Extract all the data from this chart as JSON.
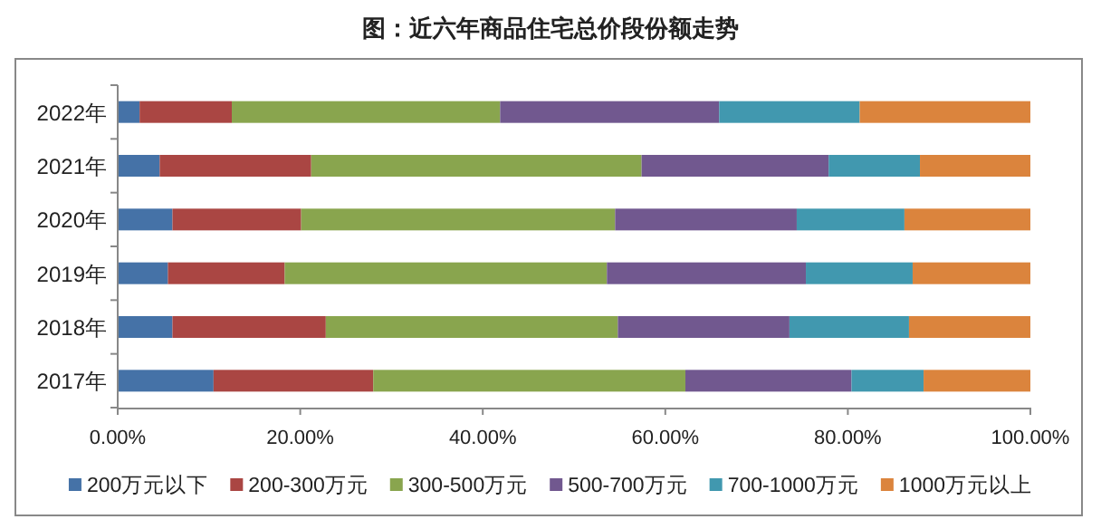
{
  "chart_data": {
    "type": "bar",
    "orientation": "horizontal",
    "stacked": true,
    "title": "图：近六年商品住宅总价段份额走势",
    "categories": [
      "2022年",
      "2021年",
      "2020年",
      "2019年",
      "2018年",
      "2017年"
    ],
    "series": [
      {
        "name": "200万元以下",
        "color": "#4572a7",
        "values": [
          2.4,
          4.6,
          6.0,
          5.5,
          6.0,
          10.5
        ]
      },
      {
        "name": "200-300万元",
        "color": "#aa4643",
        "values": [
          10.1,
          16.6,
          14.1,
          12.8,
          16.8,
          17.5
        ]
      },
      {
        "name": "300-500万元",
        "color": "#89a54e",
        "values": [
          29.4,
          36.2,
          34.4,
          35.3,
          32.0,
          34.2
        ]
      },
      {
        "name": "500-700万元",
        "color": "#71588f",
        "values": [
          24.0,
          20.5,
          19.9,
          21.8,
          18.8,
          18.2
        ]
      },
      {
        "name": "700-1000万元",
        "color": "#4198af",
        "values": [
          15.4,
          10.0,
          11.8,
          11.7,
          13.1,
          7.9
        ]
      },
      {
        "name": "1000万元以上",
        "color": "#db843d",
        "values": [
          18.7,
          12.1,
          13.8,
          12.9,
          13.3,
          11.7
        ]
      }
    ],
    "xlim": [
      0,
      100
    ],
    "xticks": [
      {
        "value": 0,
        "label": "0.00%"
      },
      {
        "value": 20,
        "label": "20.00%"
      },
      {
        "value": 40,
        "label": "40.00%"
      },
      {
        "value": 60,
        "label": "60.00%"
      },
      {
        "value": 80,
        "label": "80.00%"
      },
      {
        "value": 100,
        "label": "100.00%"
      }
    ],
    "grid": false,
    "legend": "bottom"
  }
}
